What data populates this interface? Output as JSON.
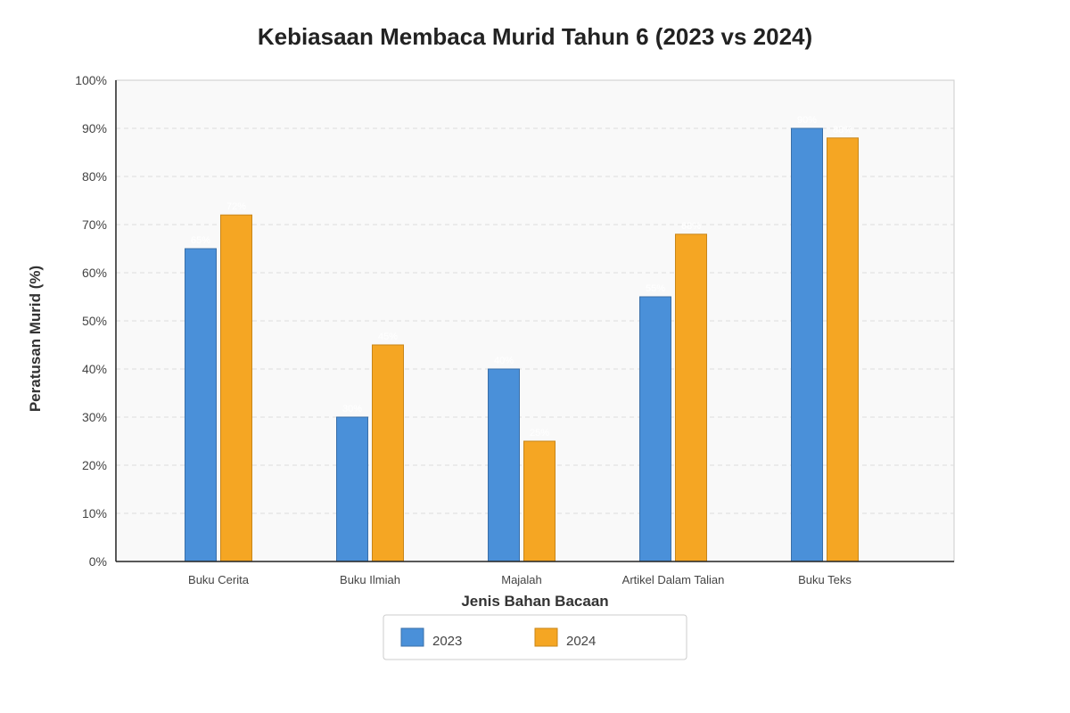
{
  "chart_data": {
    "type": "bar",
    "title": "Kebiasaan Membaca Murid Tahun 6 (2023 vs 2024)",
    "xlabel": "Jenis Bahan Bacaan",
    "ylabel": "Peratusan Murid (%)",
    "ylim": [
      0,
      100
    ],
    "yticks": [
      "0%",
      "10%",
      "20%",
      "30%",
      "40%",
      "50%",
      "60%",
      "70%",
      "80%",
      "90%",
      "100%"
    ],
    "grid": true,
    "legend_position": "bottom-center",
    "categories": [
      "Buku Cerita",
      "Buku Ilmiah",
      "Majalah",
      "Artikel Dalam Talian",
      "Buku Teks"
    ],
    "series": [
      {
        "name": "2023",
        "color": "#4A90D9",
        "stroke": "#3A6FA8",
        "values": [
          65,
          30,
          40,
          55,
          90
        ],
        "labels": [
          "65%",
          "30%",
          "40%",
          "55%",
          "90%"
        ]
      },
      {
        "name": "2024",
        "color": "#F5A623",
        "stroke": "#C8861A",
        "values": [
          72,
          45,
          25,
          68,
          88
        ],
        "labels": [
          "72%",
          "45%",
          "25%",
          "68%",
          "88%"
        ]
      }
    ]
  }
}
